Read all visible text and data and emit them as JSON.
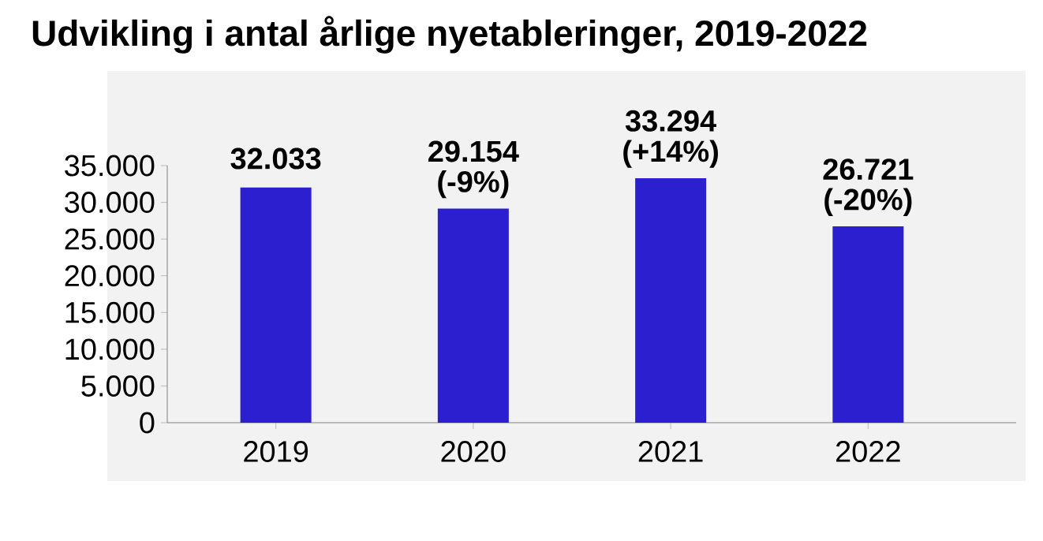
{
  "chart_data": {
    "type": "bar",
    "title": "Udvikling i antal årlige nyetableringer, 2019-2022",
    "categories": [
      "2019",
      "2020",
      "2021",
      "2022"
    ],
    "values": [
      32033,
      29154,
      33294,
      26721
    ],
    "color": "#2c1fd0",
    "value_labels": [
      "32.033",
      "29.154",
      "33.294",
      "26.721"
    ],
    "annotations": [
      {
        "text": "(-9%)",
        "x": "2020",
        "y": 29154
      },
      {
        "text": "(+14%)",
        "x": "2021",
        "y": 33294
      },
      {
        "text": "(-20%)",
        "x": "2022",
        "y": 26721
      }
    ],
    "ylim": [
      0,
      35000
    ],
    "yticks": [
      {
        "value": 0,
        "label": "0"
      },
      {
        "value": 5000,
        "label": "5.000"
      },
      {
        "value": 10000,
        "label": "10.000"
      },
      {
        "value": 15000,
        "label": "15.000"
      },
      {
        "value": 20000,
        "label": "20.000"
      },
      {
        "value": 25000,
        "label": "25.000"
      },
      {
        "value": 30000,
        "label": "30.000"
      },
      {
        "value": 35000,
        "label": "35.000"
      }
    ],
    "grid": false
  }
}
